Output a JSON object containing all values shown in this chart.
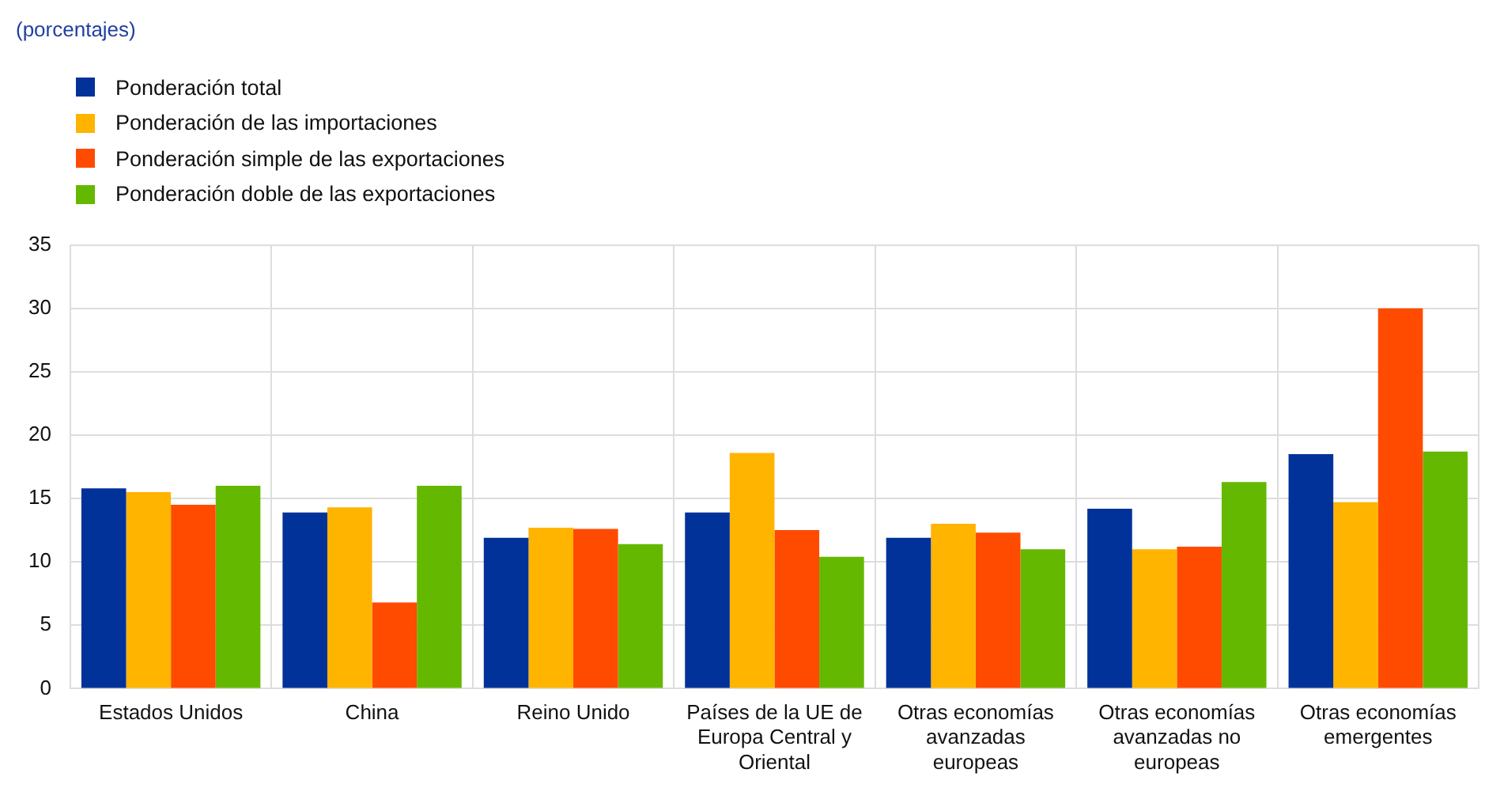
{
  "chart_data": {
    "type": "bar",
    "subtitle": "(porcentajes)",
    "categories": [
      "Estados Unidos",
      "China",
      "Reino Unido",
      "Países de la UE de Europa Central y Oriental",
      "Otras economías avanzadas europeas",
      "Otras economías avanzadas no europeas",
      "Otras economías emergentes"
    ],
    "series": [
      {
        "name": "Ponderación total",
        "color": "#003299",
        "values": [
          15.8,
          13.9,
          11.9,
          13.9,
          11.9,
          14.2,
          18.5
        ]
      },
      {
        "name": "Ponderación de las importaciones",
        "color": "#ffb400",
        "values": [
          15.5,
          14.3,
          12.7,
          18.6,
          13.0,
          11.0,
          14.7
        ]
      },
      {
        "name": "Ponderación simple de las exportaciones",
        "color": "#ff4b00",
        "values": [
          14.5,
          6.8,
          12.6,
          12.5,
          12.3,
          11.2,
          30.0
        ]
      },
      {
        "name": "Ponderación doble de las exportaciones",
        "color": "#65b800",
        "values": [
          16.0,
          16.0,
          11.4,
          10.4,
          11.0,
          16.3,
          18.7
        ]
      }
    ],
    "ylim": [
      0,
      35
    ],
    "yticks": [
      0,
      5,
      10,
      15,
      20,
      25,
      30,
      35
    ],
    "grid": true,
    "legend": "top left"
  }
}
